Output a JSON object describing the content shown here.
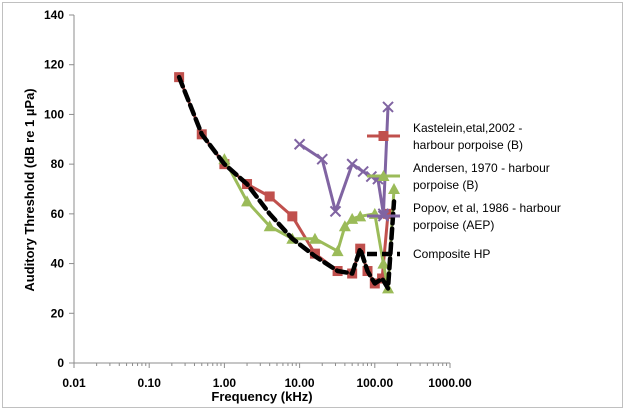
{
  "chart_data": {
    "type": "line",
    "xlabel": "Frequency (kHz)",
    "ylabel": "Auditory Threshold (dB re 1 µPa)",
    "xscale": "log",
    "xlim": [
      0.01,
      1000
    ],
    "ylim": [
      0,
      140
    ],
    "x_ticks": [
      "0.01",
      "0.10",
      "1.00",
      "10.00",
      "100.00",
      "1000.00"
    ],
    "y_ticks": [
      "0",
      "20",
      "40",
      "60",
      "80",
      "100",
      "120",
      "140"
    ],
    "grid": false,
    "legend_position": "right",
    "series": [
      {
        "name": "Kastelein,etal,2002 - harbour porpoise (B)",
        "legend_lines": [
          "Kastelein,etal,2002 -",
          "harbour porpoise (B)"
        ],
        "color": "#c0504d",
        "marker": "square",
        "x": [
          0.25,
          0.5,
          1,
          2,
          4,
          8,
          16,
          32,
          50,
          64,
          80,
          100,
          125,
          150
        ],
        "y": [
          115,
          92,
          80,
          72,
          67,
          59,
          44,
          37,
          36,
          46,
          37,
          32,
          34,
          60
        ]
      },
      {
        "name": "Andersen, 1970 - harbour porpoise (B)",
        "legend_lines": [
          "Andersen, 1970 - harbour",
          "porpoise (B)"
        ],
        "color": "#9bbb59",
        "marker": "triangle",
        "x": [
          1,
          2,
          4,
          8,
          16,
          32,
          40,
          50,
          64,
          100,
          130,
          150,
          180
        ],
        "y": [
          82,
          65,
          55,
          50,
          50,
          45,
          55,
          58,
          59,
          60,
          40,
          30,
          70
        ]
      },
      {
        "name": "Popov, et al, 1986 - harbour porpoise (AEP)",
        "legend_lines": [
          "Popov, et al, 1986 - harbour",
          "porpoise (AEP)"
        ],
        "color": "#8064a2",
        "marker": "x",
        "x": [
          10,
          20,
          30,
          50,
          70,
          90,
          110,
          130,
          150
        ],
        "y": [
          88,
          82,
          61,
          80,
          77,
          75,
          74,
          60,
          103
        ]
      },
      {
        "name": "Composite HP",
        "legend_lines": [
          "Composite HP"
        ],
        "color": "#000000",
        "marker": "none",
        "dashed": true,
        "x": [
          0.25,
          0.5,
          1,
          2,
          4,
          8,
          16,
          32,
          50,
          64,
          80,
          100,
          125,
          150,
          180
        ],
        "y": [
          115,
          92,
          80,
          72,
          60,
          50,
          43,
          37,
          36,
          46,
          37,
          32,
          34,
          30,
          65
        ]
      }
    ]
  }
}
